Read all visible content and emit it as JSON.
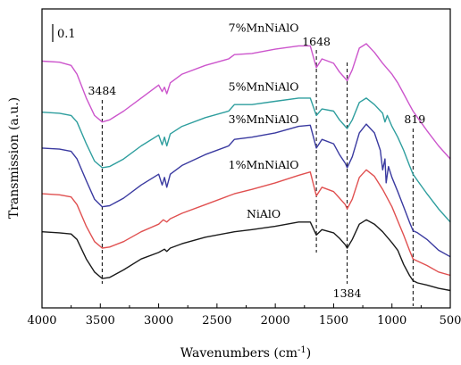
{
  "chart_data": {
    "type": "line",
    "xlabel": "Wavenumbers (cm",
    "xlabel_sup": "-1",
    "xlabel_close": ")",
    "ylabel": "Transmission (a.u.)",
    "xlim": [
      4000,
      500
    ],
    "x_reversed": true,
    "x_ticks": [
      "4000",
      "3500",
      "3000",
      "2500",
      "2000",
      "1500",
      "1000",
      "500"
    ],
    "scale_bar_label": "0.1",
    "grid": false,
    "y_axis_arbitrary_offset_units": true,
    "series": [
      {
        "name": "NiAlO",
        "color": "#1a1a1a",
        "points": [
          [
            4000,
            0.95
          ],
          [
            3850,
            0.94
          ],
          [
            3750,
            0.93
          ],
          [
            3700,
            0.88
          ],
          [
            3620,
            0.7
          ],
          [
            3550,
            0.58
          ],
          [
            3484,
            0.52
          ],
          [
            3420,
            0.53
          ],
          [
            3300,
            0.6
          ],
          [
            3150,
            0.7
          ],
          [
            3000,
            0.76
          ],
          [
            2950,
            0.79
          ],
          [
            2930,
            0.77
          ],
          [
            2900,
            0.8
          ],
          [
            2800,
            0.84
          ],
          [
            2600,
            0.9
          ],
          [
            2400,
            0.94
          ],
          [
            2350,
            0.95
          ],
          [
            2200,
            0.97
          ],
          [
            2000,
            1.0
          ],
          [
            1800,
            1.04
          ],
          [
            1700,
            1.04
          ],
          [
            1648,
            0.92
          ],
          [
            1600,
            0.97
          ],
          [
            1500,
            0.94
          ],
          [
            1450,
            0.89
          ],
          [
            1400,
            0.83
          ],
          [
            1384,
            0.8
          ],
          [
            1340,
            0.88
          ],
          [
            1280,
            1.02
          ],
          [
            1220,
            1.06
          ],
          [
            1150,
            1.02
          ],
          [
            1080,
            0.95
          ],
          [
            1000,
            0.85
          ],
          [
            950,
            0.78
          ],
          [
            900,
            0.65
          ],
          [
            850,
            0.55
          ],
          [
            819,
            0.5
          ],
          [
            780,
            0.48
          ],
          [
            700,
            0.46
          ],
          [
            600,
            0.43
          ],
          [
            500,
            0.41
          ]
        ]
      },
      {
        "name": "1%MnNiAlO",
        "color": "#e05050",
        "points": [
          [
            4000,
            1.3
          ],
          [
            3850,
            1.29
          ],
          [
            3750,
            1.27
          ],
          [
            3700,
            1.2
          ],
          [
            3620,
            1.0
          ],
          [
            3550,
            0.86
          ],
          [
            3484,
            0.8
          ],
          [
            3420,
            0.81
          ],
          [
            3300,
            0.86
          ],
          [
            3150,
            0.95
          ],
          [
            3000,
            1.02
          ],
          [
            2960,
            1.06
          ],
          [
            2930,
            1.04
          ],
          [
            2900,
            1.07
          ],
          [
            2800,
            1.12
          ],
          [
            2600,
            1.2
          ],
          [
            2400,
            1.28
          ],
          [
            2350,
            1.3
          ],
          [
            2200,
            1.34
          ],
          [
            2000,
            1.4
          ],
          [
            1800,
            1.47
          ],
          [
            1700,
            1.5
          ],
          [
            1648,
            1.28
          ],
          [
            1600,
            1.36
          ],
          [
            1500,
            1.32
          ],
          [
            1450,
            1.26
          ],
          [
            1400,
            1.2
          ],
          [
            1384,
            1.16
          ],
          [
            1340,
            1.25
          ],
          [
            1280,
            1.45
          ],
          [
            1220,
            1.52
          ],
          [
            1150,
            1.46
          ],
          [
            1080,
            1.34
          ],
          [
            1000,
            1.18
          ],
          [
            950,
            1.05
          ],
          [
            900,
            0.92
          ],
          [
            850,
            0.78
          ],
          [
            819,
            0.7
          ],
          [
            780,
            0.68
          ],
          [
            700,
            0.64
          ],
          [
            600,
            0.58
          ],
          [
            500,
            0.55
          ]
        ]
      },
      {
        "name": "3%MnNiAlO",
        "color": "#3a3aa0",
        "points": [
          [
            4000,
            1.72
          ],
          [
            3850,
            1.71
          ],
          [
            3750,
            1.69
          ],
          [
            3700,
            1.62
          ],
          [
            3620,
            1.42
          ],
          [
            3550,
            1.25
          ],
          [
            3484,
            1.18
          ],
          [
            3420,
            1.19
          ],
          [
            3300,
            1.26
          ],
          [
            3150,
            1.38
          ],
          [
            3000,
            1.48
          ],
          [
            2970,
            1.38
          ],
          [
            2950,
            1.45
          ],
          [
            2930,
            1.36
          ],
          [
            2900,
            1.48
          ],
          [
            2800,
            1.56
          ],
          [
            2600,
            1.66
          ],
          [
            2400,
            1.74
          ],
          [
            2350,
            1.8
          ],
          [
            2200,
            1.82
          ],
          [
            2000,
            1.86
          ],
          [
            1800,
            1.92
          ],
          [
            1700,
            1.93
          ],
          [
            1648,
            1.72
          ],
          [
            1600,
            1.8
          ],
          [
            1500,
            1.76
          ],
          [
            1450,
            1.66
          ],
          [
            1400,
            1.58
          ],
          [
            1384,
            1.54
          ],
          [
            1340,
            1.64
          ],
          [
            1280,
            1.86
          ],
          [
            1220,
            1.94
          ],
          [
            1150,
            1.86
          ],
          [
            1100,
            1.7
          ],
          [
            1080,
            1.52
          ],
          [
            1060,
            1.62
          ],
          [
            1050,
            1.4
          ],
          [
            1030,
            1.55
          ],
          [
            1000,
            1.45
          ],
          [
            950,
            1.32
          ],
          [
            900,
            1.18
          ],
          [
            850,
            1.04
          ],
          [
            819,
            0.96
          ],
          [
            780,
            0.94
          ],
          [
            700,
            0.88
          ],
          [
            600,
            0.78
          ],
          [
            500,
            0.72
          ]
        ]
      },
      {
        "name": "5%MnNiAlO",
        "color": "#2e9e9e",
        "points": [
          [
            4000,
            2.05
          ],
          [
            3850,
            2.04
          ],
          [
            3750,
            2.02
          ],
          [
            3700,
            1.96
          ],
          [
            3620,
            1.76
          ],
          [
            3550,
            1.6
          ],
          [
            3484,
            1.54
          ],
          [
            3420,
            1.55
          ],
          [
            3300,
            1.62
          ],
          [
            3150,
            1.74
          ],
          [
            3000,
            1.84
          ],
          [
            2970,
            1.75
          ],
          [
            2950,
            1.82
          ],
          [
            2930,
            1.74
          ],
          [
            2900,
            1.85
          ],
          [
            2800,
            1.92
          ],
          [
            2600,
            2.0
          ],
          [
            2400,
            2.06
          ],
          [
            2350,
            2.12
          ],
          [
            2200,
            2.12
          ],
          [
            2000,
            2.15
          ],
          [
            1800,
            2.18
          ],
          [
            1700,
            2.18
          ],
          [
            1648,
            2.02
          ],
          [
            1600,
            2.08
          ],
          [
            1500,
            2.06
          ],
          [
            1450,
            1.98
          ],
          [
            1400,
            1.92
          ],
          [
            1384,
            1.9
          ],
          [
            1340,
            1.98
          ],
          [
            1280,
            2.14
          ],
          [
            1220,
            2.18
          ],
          [
            1150,
            2.12
          ],
          [
            1080,
            2.04
          ],
          [
            1060,
            1.96
          ],
          [
            1040,
            2.02
          ],
          [
            1000,
            1.92
          ],
          [
            950,
            1.82
          ],
          [
            900,
            1.7
          ],
          [
            850,
            1.56
          ],
          [
            819,
            1.48
          ],
          [
            780,
            1.42
          ],
          [
            700,
            1.3
          ],
          [
            600,
            1.16
          ],
          [
            500,
            1.04
          ]
        ]
      },
      {
        "name": "7%MnNiAlO",
        "color": "#cc55cc",
        "points": [
          [
            4000,
            2.52
          ],
          [
            3850,
            2.51
          ],
          [
            3750,
            2.48
          ],
          [
            3700,
            2.4
          ],
          [
            3620,
            2.18
          ],
          [
            3550,
            2.02
          ],
          [
            3484,
            1.96
          ],
          [
            3420,
            1.98
          ],
          [
            3300,
            2.06
          ],
          [
            3150,
            2.18
          ],
          [
            3000,
            2.3
          ],
          [
            2970,
            2.24
          ],
          [
            2950,
            2.28
          ],
          [
            2930,
            2.22
          ],
          [
            2900,
            2.32
          ],
          [
            2800,
            2.4
          ],
          [
            2600,
            2.48
          ],
          [
            2400,
            2.54
          ],
          [
            2350,
            2.58
          ],
          [
            2200,
            2.59
          ],
          [
            2000,
            2.63
          ],
          [
            1800,
            2.66
          ],
          [
            1700,
            2.66
          ],
          [
            1648,
            2.46
          ],
          [
            1600,
            2.54
          ],
          [
            1500,
            2.5
          ],
          [
            1450,
            2.42
          ],
          [
            1400,
            2.36
          ],
          [
            1384,
            2.34
          ],
          [
            1340,
            2.44
          ],
          [
            1280,
            2.64
          ],
          [
            1220,
            2.68
          ],
          [
            1150,
            2.6
          ],
          [
            1080,
            2.5
          ],
          [
            1000,
            2.4
          ],
          [
            950,
            2.32
          ],
          [
            900,
            2.22
          ],
          [
            850,
            2.12
          ],
          [
            819,
            2.06
          ],
          [
            780,
            2.0
          ],
          [
            700,
            1.88
          ],
          [
            600,
            1.74
          ],
          [
            500,
            1.62
          ]
        ]
      }
    ],
    "series_labels": [
      {
        "text": "NiAlO",
        "x": 2100,
        "y": 1.08
      },
      {
        "text": "1%MnNiAlO",
        "x": 2100,
        "y": 1.53
      },
      {
        "text": "3%MnNiAlO",
        "x": 2100,
        "y": 1.95
      },
      {
        "text": "5%MnNiAlO",
        "x": 2100,
        "y": 2.25
      },
      {
        "text": "7%MnNiAlO",
        "x": 2100,
        "y": 2.79
      }
    ],
    "reference_lines": [
      {
        "x": 3484,
        "label": "3484",
        "label_pos": "top"
      },
      {
        "x": 1648,
        "label": "1648",
        "label_pos": "top"
      },
      {
        "x": 1384,
        "label": "1384",
        "label_pos": "bottom"
      },
      {
        "x": 819,
        "label": "819",
        "label_pos": "top"
      }
    ]
  }
}
